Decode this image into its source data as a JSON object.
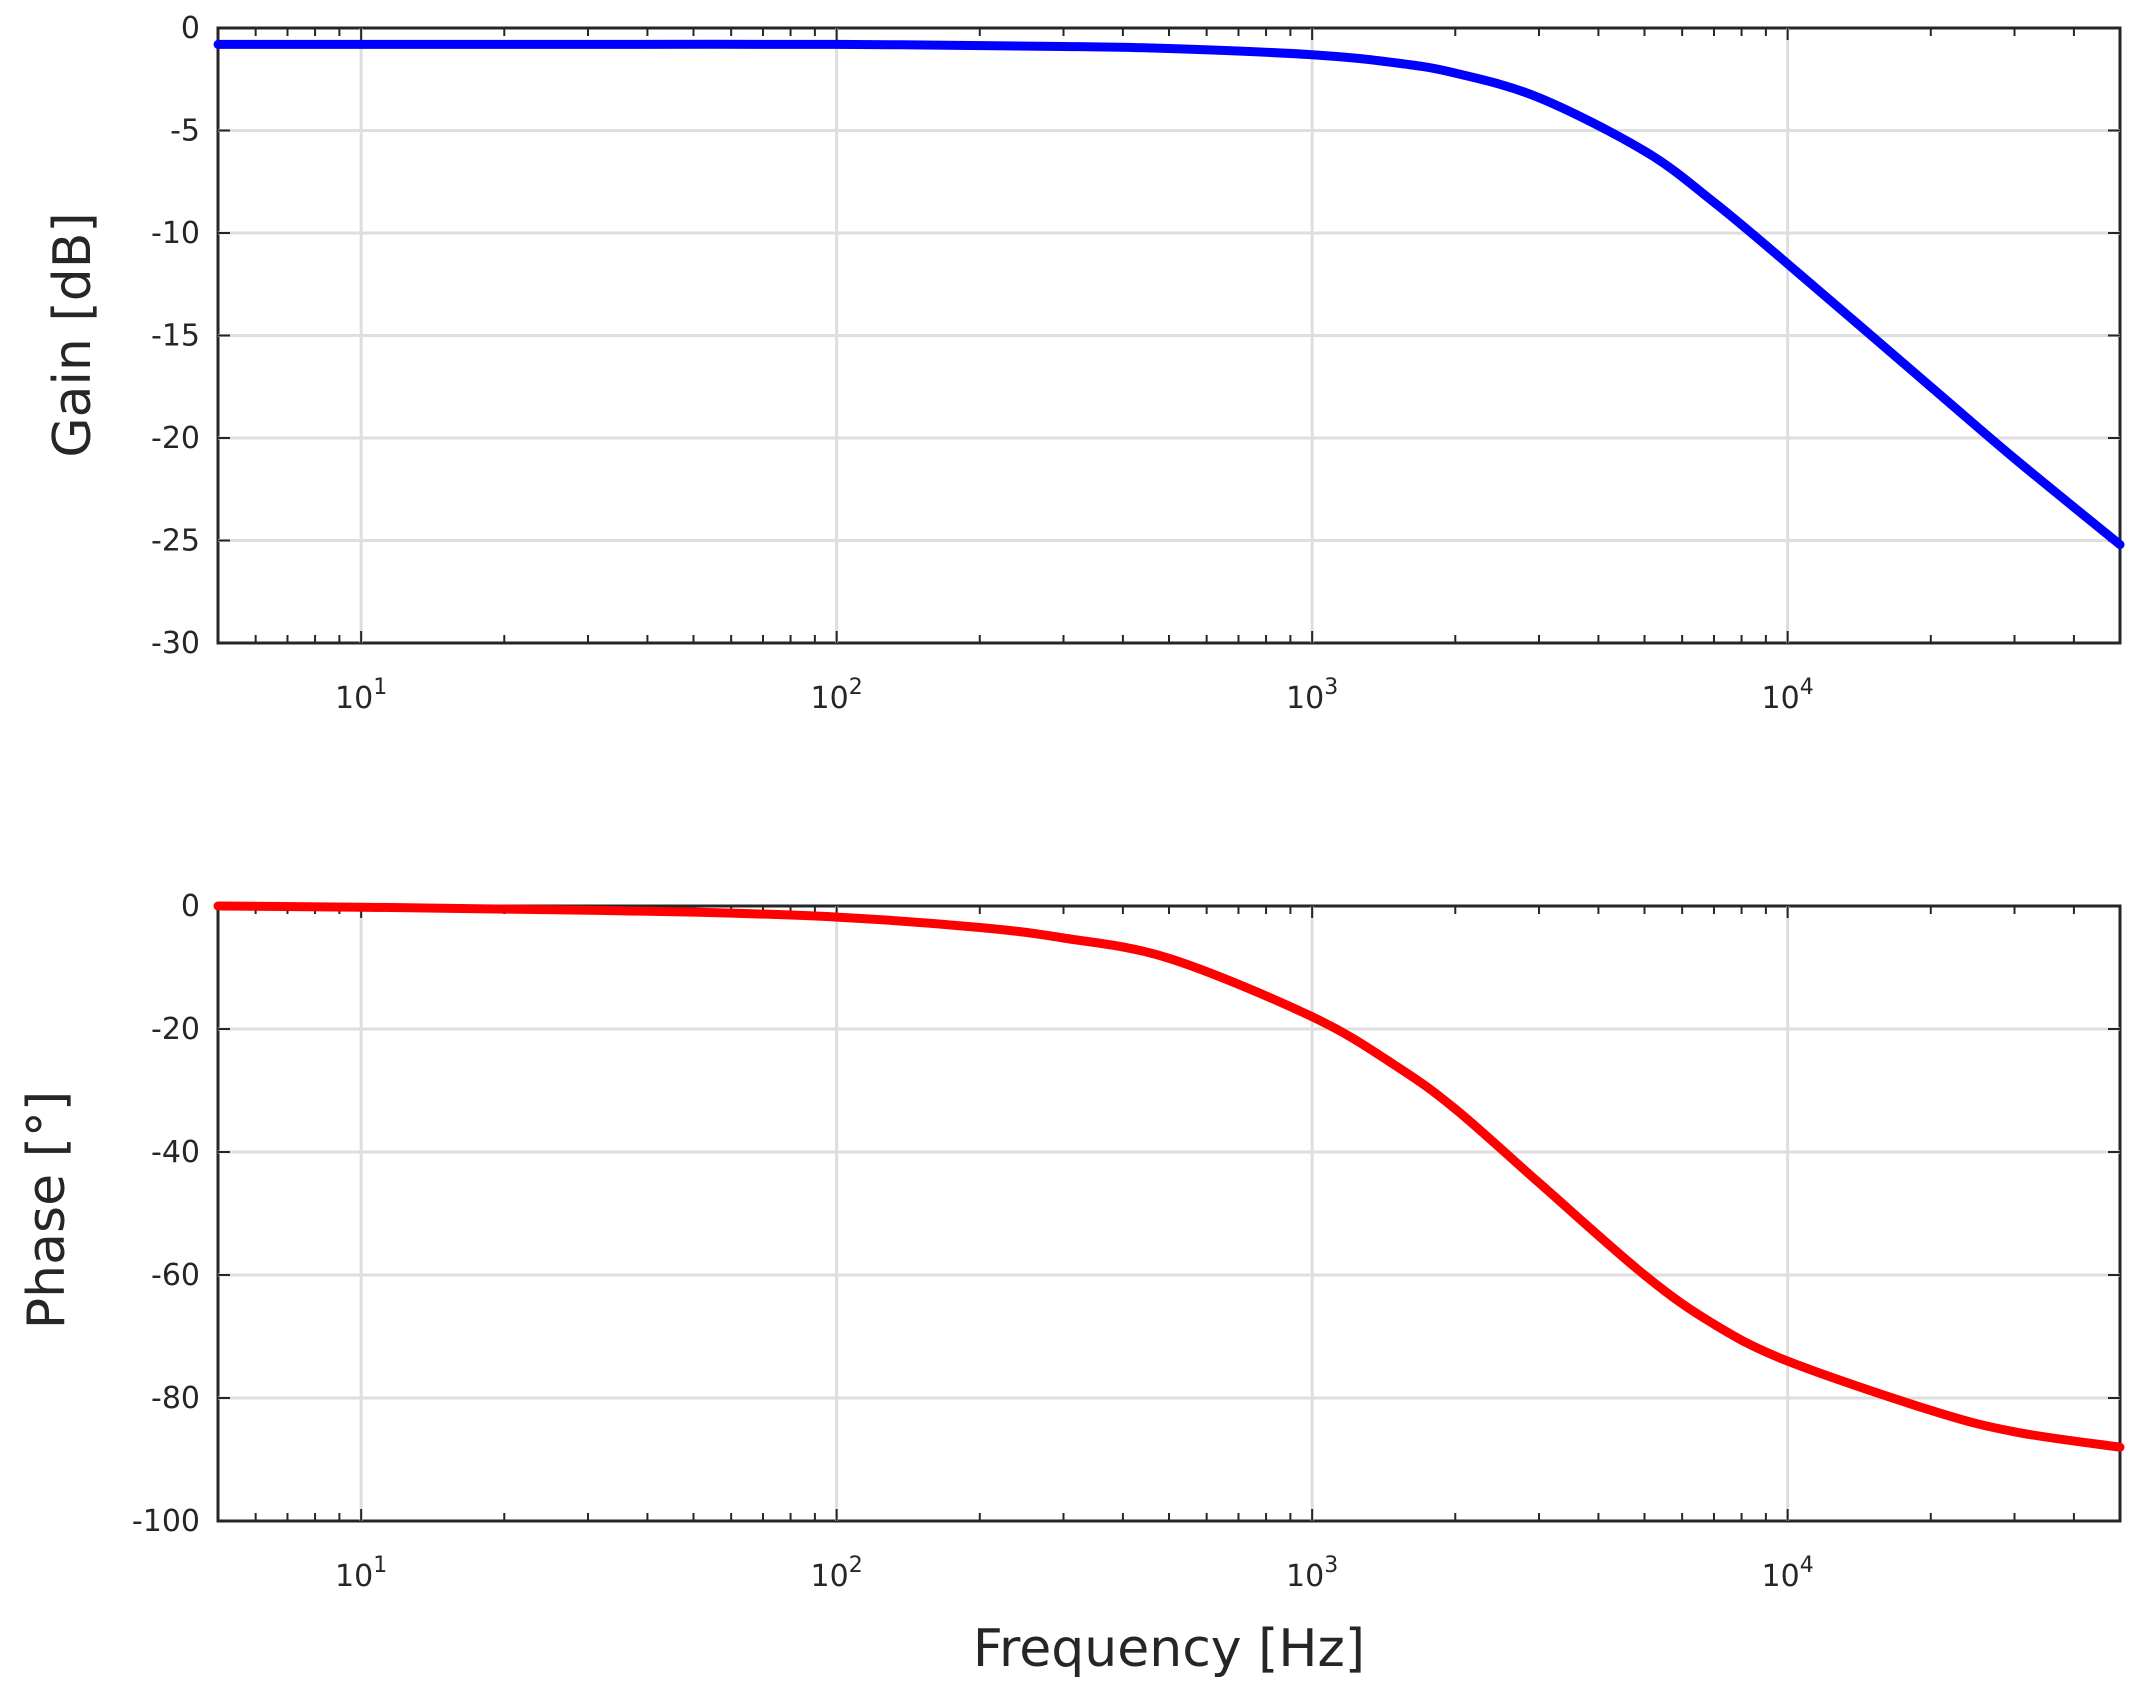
{
  "colors": {
    "gain_line": "#0000ff",
    "phase_line": "#ff0000",
    "axes": "#262626",
    "grid": "#dedede"
  },
  "chart_data": [
    {
      "type": "line",
      "title": "",
      "xlabel": "",
      "ylabel": "Gain [dB]",
      "xscale": "log",
      "xlim": [
        5,
        50000
      ],
      "ylim": [
        -30,
        0
      ],
      "grid": true,
      "xticks": [
        10,
        100,
        1000,
        10000
      ],
      "xtick_labels": [
        {
          "base": "10",
          "exp": "1"
        },
        {
          "base": "10",
          "exp": "2"
        },
        {
          "base": "10",
          "exp": "3"
        },
        {
          "base": "10",
          "exp": "4"
        }
      ],
      "yticks": [
        0,
        -5,
        -10,
        -15,
        -20,
        -25,
        -30
      ],
      "ytick_labels": [
        "0",
        "-5",
        "-10",
        "-15",
        "-20",
        "-25",
        "-30"
      ],
      "series": [
        {
          "color": "#0000ff",
          "x": [
            5,
            10,
            30,
            100,
            300,
            500,
            1000,
            1500,
            2000,
            3000,
            5000,
            7000,
            10000,
            20000,
            30000,
            50000
          ],
          "y": [
            -0.8,
            -0.8,
            -0.8,
            -0.8,
            -0.9,
            -1.0,
            -1.3,
            -1.7,
            -2.2,
            -3.4,
            -6.0,
            -8.5,
            -11.5,
            -17.5,
            -21.0,
            -25.2
          ]
        }
      ]
    },
    {
      "type": "line",
      "title": "",
      "xlabel": "Frequency [Hz]",
      "ylabel": "Phase [°]",
      "xscale": "log",
      "xlim": [
        5,
        50000
      ],
      "ylim": [
        -100,
        0
      ],
      "grid": true,
      "xticks": [
        10,
        100,
        1000,
        10000
      ],
      "xtick_labels": [
        {
          "base": "10",
          "exp": "1"
        },
        {
          "base": "10",
          "exp": "2"
        },
        {
          "base": "10",
          "exp": "3"
        },
        {
          "base": "10",
          "exp": "4"
        }
      ],
      "yticks": [
        0,
        -20,
        -40,
        -60,
        -80,
        -100
      ],
      "ytick_labels": [
        "0",
        "-20",
        "-40",
        "-60",
        "-80",
        "-100"
      ],
      "series": [
        {
          "color": "#ff0000",
          "x": [
            5,
            10,
            20,
            50,
            100,
            200,
            300,
            500,
            1000,
            1500,
            2000,
            3000,
            5000,
            7000,
            10000,
            20000,
            30000,
            50000
          ],
          "y": [
            0,
            -0.2,
            -0.5,
            -1.0,
            -1.8,
            -3.5,
            -5.2,
            -8.5,
            -18,
            -26,
            -33,
            -45,
            -60,
            -68,
            -74,
            -82,
            -85.5,
            -88
          ]
        }
      ]
    }
  ]
}
